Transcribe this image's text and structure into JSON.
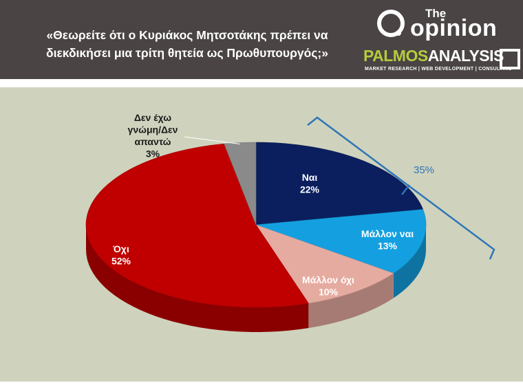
{
  "header": {
    "title": "«Θεωρείτε ότι ο Κυριάκος Μητσοτάκης πρέπει να διεκδικήσει μια τρίτη θητεία ως Πρωθυπουργός;»",
    "logo_opinion_small": "The",
    "logo_opinion_word": "opinion",
    "logo_palmos": "PALMOS",
    "logo_analysis": "ANALYSIS",
    "logo_palmos_sub": "MARKET RESEARCH | WEB DEVELOPMENT | CONSULTING",
    "colors": {
      "background": "#4a4444",
      "text": "#ffffff",
      "palmos_green": "#b5cc3d"
    }
  },
  "chart_data": {
    "type": "pie",
    "title": "«Θεωρείτε ότι ο Κυριάκος Μητσοτάκης πρέπει να διεκδικήσει μια τρίτη θητεία ως Πρωθυπουργός;»",
    "style": "3d-pie",
    "slices": [
      {
        "label": "Ναι",
        "value": 22,
        "value_label": "22%",
        "color": "#0b1f5e",
        "label_color": "#ffffff"
      },
      {
        "label": "Μάλλον ναι",
        "value": 13,
        "value_label": "13%",
        "color": "#14a0e0",
        "label_color": "#ffffff"
      },
      {
        "label": "Μάλλον όχι",
        "value": 10,
        "value_label": "10%",
        "color": "#e6aba0",
        "label_color": "#ffffff"
      },
      {
        "label": "Όχι",
        "value": 52,
        "value_label": "52%",
        "color": "#c00000",
        "label_color": "#ffffff"
      },
      {
        "label": "Δεν έχω γνώμη/Δεν απαντώ",
        "value": 3,
        "value_label": "3%",
        "color": "#8a8a8a",
        "label_color": "#1a1a1a"
      }
    ],
    "annotation": {
      "text": "35%",
      "spans": [
        "Ναι",
        "Μάλλον ναι"
      ],
      "color": "#2e75b6"
    },
    "legend": "none",
    "background": "#cfd3bd"
  }
}
